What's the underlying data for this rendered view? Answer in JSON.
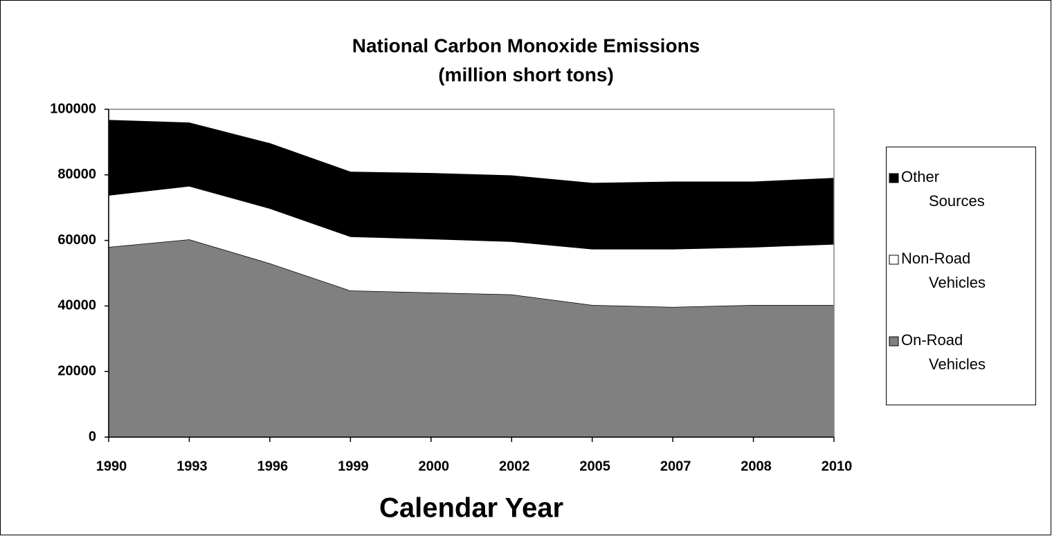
{
  "chart_data": {
    "type": "stacked_area",
    "title": "National Carbon Monoxide Emissions",
    "subtitle": "(million short tons)",
    "x_label": "Calendar Year",
    "categories": [
      "1990",
      "1993",
      "1996",
      "1999",
      "2000",
      "2002",
      "2005",
      "2007",
      "2008",
      "2010"
    ],
    "series": [
      {
        "name": "On-Road Vehicles",
        "color": "#808080",
        "values": [
          58000,
          60300,
          53000,
          44700,
          44100,
          43500,
          40300,
          39700,
          40300,
          40300
        ]
      },
      {
        "name": "Non-Road Vehicles",
        "color": "#ffffff",
        "values": [
          15800,
          16300,
          16800,
          16500,
          16400,
          16200,
          17100,
          17700,
          17700,
          18600
        ]
      },
      {
        "name": "Other Sources",
        "color": "#000000",
        "values": [
          22800,
          19200,
          19700,
          19600,
          19900,
          20000,
          20000,
          20400,
          19800,
          20000
        ]
      }
    ],
    "ylim": [
      0,
      100000
    ],
    "yticks": [
      0,
      20000,
      40000,
      60000,
      80000,
      100000
    ],
    "grid": false,
    "legend": "right"
  }
}
